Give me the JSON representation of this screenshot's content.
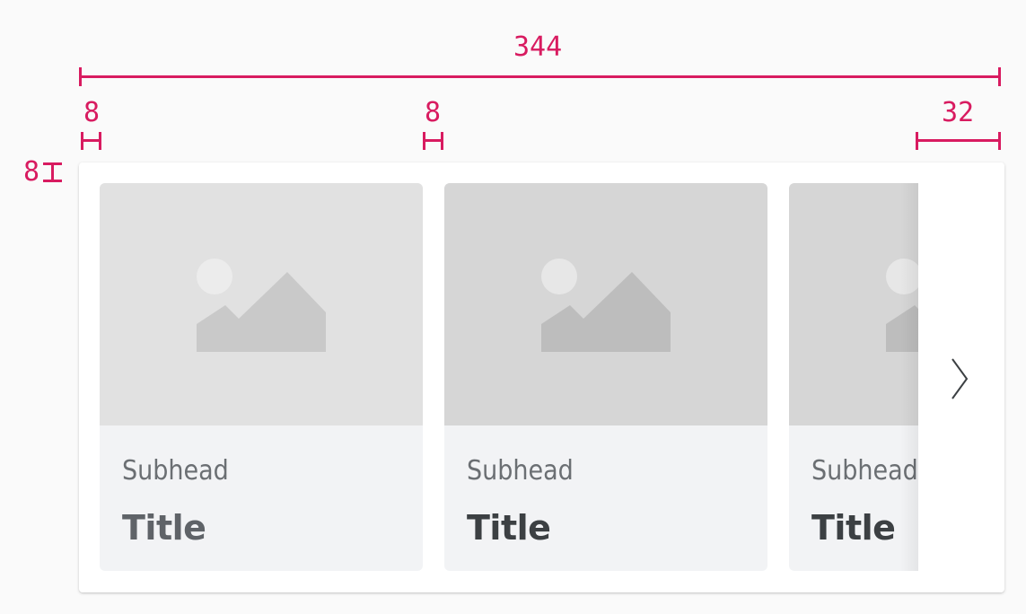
{
  "spec": {
    "total_width_label": "344",
    "left_padding_label": "8",
    "gap_label": "8",
    "peek_label": "32",
    "top_padding_label": "8",
    "annotation_color": "#d81b60"
  },
  "carousel": {
    "cards": [
      {
        "subhead": "Subhead",
        "title": "Title",
        "image_icon": "image-placeholder-icon"
      },
      {
        "subhead": "Subhead",
        "title": "Title",
        "image_icon": "image-placeholder-icon"
      },
      {
        "subhead": "Subhead",
        "title": "Title",
        "image_icon": "image-placeholder-icon"
      }
    ],
    "next_icon": "chevron-right-icon"
  }
}
